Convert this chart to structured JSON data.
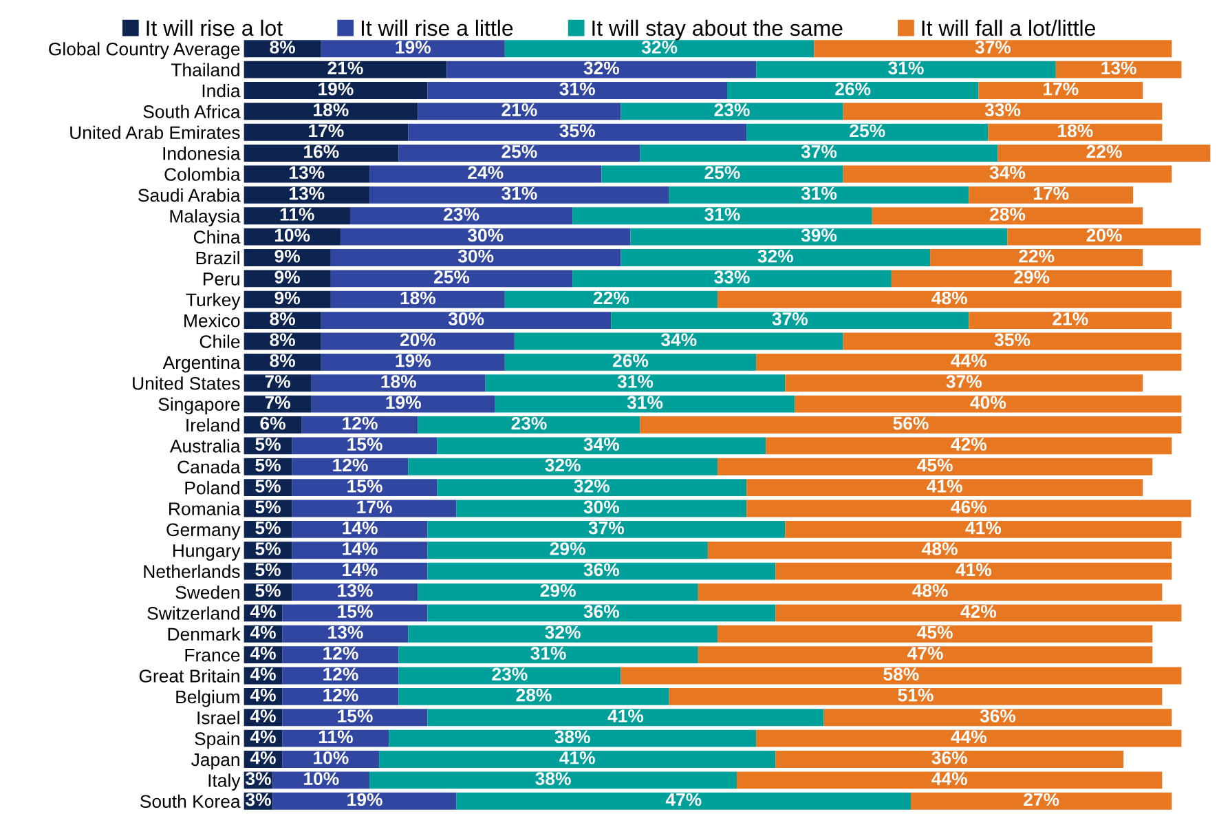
{
  "chart_data": {
    "type": "bar",
    "orientation": "horizontal",
    "stacked": true,
    "legend": "top",
    "grid": false,
    "tick_labels": "y",
    "xlim": [
      0,
      100
    ],
    "categories": [
      "Global Country Average",
      "Thailand",
      "India",
      "South Africa",
      "United Arab Emirates",
      "Indonesia",
      "Colombia",
      "Saudi Arabia",
      "Malaysia",
      "China",
      "Brazil",
      "Peru",
      "Turkey",
      "Mexico",
      "Chile",
      "Argentina",
      "United States",
      "Singapore",
      "Ireland",
      "Australia",
      "Canada",
      "Poland",
      "Romania",
      "Germany",
      "Hungary",
      "Netherlands",
      "Sweden",
      "Switzerland",
      "Denmark",
      "France",
      "Great Britain",
      "Belgium",
      "Israel",
      "Spain",
      "Japan",
      "Italy",
      "South Korea"
    ],
    "series": [
      {
        "name": "It will rise a lot",
        "color": "#0d2350",
        "values": [
          8,
          21,
          19,
          18,
          17,
          16,
          13,
          13,
          11,
          10,
          9,
          9,
          9,
          8,
          8,
          8,
          7,
          7,
          6,
          5,
          5,
          5,
          5,
          5,
          5,
          5,
          5,
          4,
          4,
          4,
          4,
          4,
          4,
          4,
          4,
          3,
          3
        ],
        "value_labels": [
          "8%",
          "21%",
          "19%",
          "18%",
          "17%",
          "16%",
          "13%",
          "13%",
          "11%",
          "10%",
          "9%",
          "9%",
          "9%",
          "8%",
          "8%",
          "8%",
          "7%",
          "7%",
          "6%",
          "5%",
          "5%",
          "5%",
          "5%",
          "5%",
          "5%",
          "5%",
          "5%",
          "4%",
          "4%",
          "4%",
          "4%",
          "4%",
          "4%",
          "4%",
          "4%",
          "3%",
          "3%"
        ]
      },
      {
        "name": "It will rise a little",
        "color": "#3046a0",
        "values": [
          19,
          32,
          31,
          21,
          35,
          25,
          24,
          31,
          23,
          30,
          30,
          25,
          18,
          30,
          20,
          19,
          18,
          19,
          12,
          15,
          12,
          15,
          17,
          14,
          14,
          14,
          13,
          15,
          13,
          12,
          12,
          12,
          15,
          11,
          10,
          10,
          19
        ],
        "value_labels": [
          "19%",
          "32%",
          "31%",
          "21%",
          "35%",
          "25%",
          "24%",
          "31%",
          "23%",
          "30%",
          "30%",
          "25%",
          "18%",
          "30%",
          "20%",
          "19%",
          "18%",
          "19%",
          "12%",
          "15%",
          "12%",
          "15%",
          "17%",
          "14%",
          "14%",
          "14%",
          "13%",
          "15%",
          "13%",
          "12%",
          "12%",
          "12%",
          "15%",
          "11%",
          "10%",
          "10%",
          "19%"
        ]
      },
      {
        "name": "It will stay about the same",
        "color": "#00a09a",
        "values": [
          32,
          31,
          26,
          23,
          25,
          37,
          25,
          31,
          31,
          39,
          32,
          33,
          22,
          37,
          34,
          26,
          31,
          31,
          23,
          34,
          32,
          32,
          30,
          37,
          29,
          36,
          29,
          36,
          32,
          31,
          23,
          28,
          41,
          38,
          41,
          38,
          47
        ],
        "value_labels": [
          "32%",
          "31%",
          "26%",
          "23%",
          "25%",
          "37%",
          "25%",
          "31%",
          "31%",
          "39%",
          "32%",
          "33%",
          "22%",
          "37%",
          "34%",
          "26%",
          "31%",
          "31%",
          "23%",
          "34%",
          "32%",
          "32%",
          "30%",
          "37%",
          "29%",
          "36%",
          "29%",
          "36%",
          "32%",
          "31%",
          "23%",
          "28%",
          "41%",
          "38%",
          "41%",
          "38%",
          "47%"
        ]
      },
      {
        "name": "It will fall a lot/little",
        "color": "#e87722",
        "values": [
          37,
          13,
          17,
          33,
          18,
          22,
          34,
          17,
          28,
          20,
          22,
          29,
          48,
          21,
          35,
          44,
          37,
          40,
          56,
          42,
          45,
          41,
          46,
          41,
          48,
          41,
          48,
          42,
          45,
          47,
          58,
          51,
          36,
          44,
          36,
          44,
          27
        ],
        "value_labels": [
          "37%",
          "13%",
          "17%",
          "33%",
          "18%",
          "22%",
          "34%",
          "17%",
          "28%",
          "20%",
          "22%",
          "29%",
          "48%",
          "21%",
          "35%",
          "44%",
          "37%",
          "40%",
          "56%",
          "42%",
          "45%",
          "41%",
          "46%",
          "41%",
          "48%",
          "41%",
          "48%",
          "42%",
          "45%",
          "47%",
          "58%",
          "51%",
          "36%",
          "44%",
          "36%",
          "44%",
          "27%"
        ]
      }
    ]
  }
}
